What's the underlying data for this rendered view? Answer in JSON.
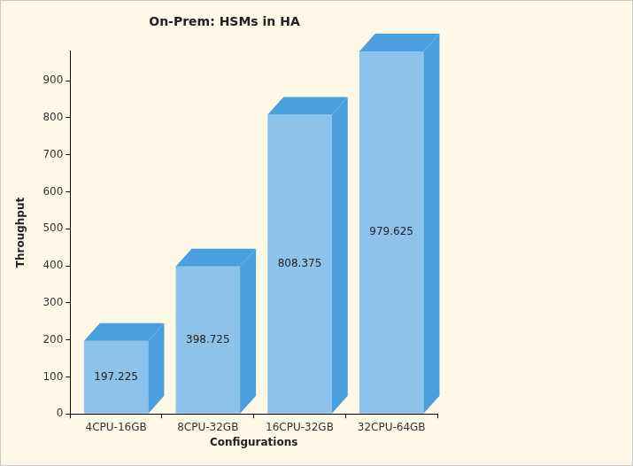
{
  "chart_data": {
    "type": "bar",
    "title": "On-Prem: HSMs in HA",
    "x_label": "Configurations",
    "y_label": "Throughput",
    "categories": [
      "4CPU-16GB",
      "8CPU-32GB",
      "16CPU-32GB",
      "32CPU-64GB"
    ],
    "values": [
      197.225,
      398.725,
      808.375,
      979.625
    ],
    "color": "#8dc3ea",
    "ylim": [
      0,
      980
    ],
    "yticks": [
      0,
      100,
      200,
      300,
      400,
      500,
      600,
      700,
      800,
      900
    ],
    "grid": false,
    "data_labels": true
  }
}
